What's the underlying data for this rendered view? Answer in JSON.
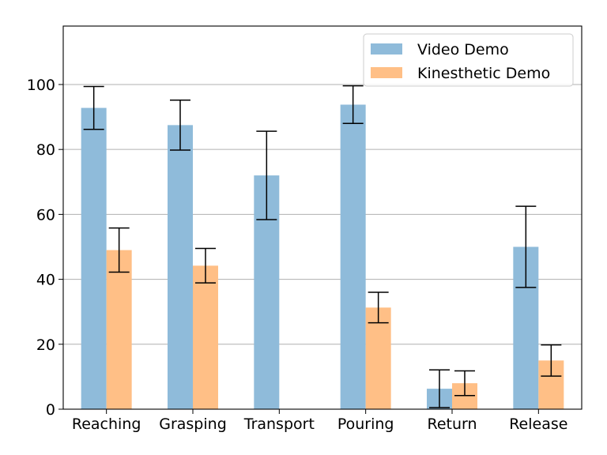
{
  "chart_data": {
    "type": "bar",
    "title": "",
    "xlabel": "",
    "ylabel": "",
    "categories": [
      "Reaching",
      "Grasping",
      "Transport",
      "Pouring",
      "Return",
      "Release"
    ],
    "ylim": [
      0,
      118
    ],
    "yticks": [
      0,
      20,
      40,
      60,
      80,
      100
    ],
    "grid": "horizontal",
    "legend_position": "top-right",
    "series": [
      {
        "name": "Video Demo",
        "color": "#8fbbda",
        "values": [
          92.8,
          87.5,
          72.0,
          93.8,
          6.3,
          50.0
        ],
        "errors": [
          6.6,
          7.7,
          13.6,
          5.8,
          5.8,
          12.5
        ]
      },
      {
        "name": "Kinesthetic Demo",
        "color": "#ffbf86",
        "values": [
          49.0,
          44.2,
          0.0,
          31.3,
          8.0,
          15.0
        ],
        "errors": [
          6.8,
          5.3,
          0.0,
          4.7,
          3.8,
          4.8
        ]
      }
    ]
  }
}
